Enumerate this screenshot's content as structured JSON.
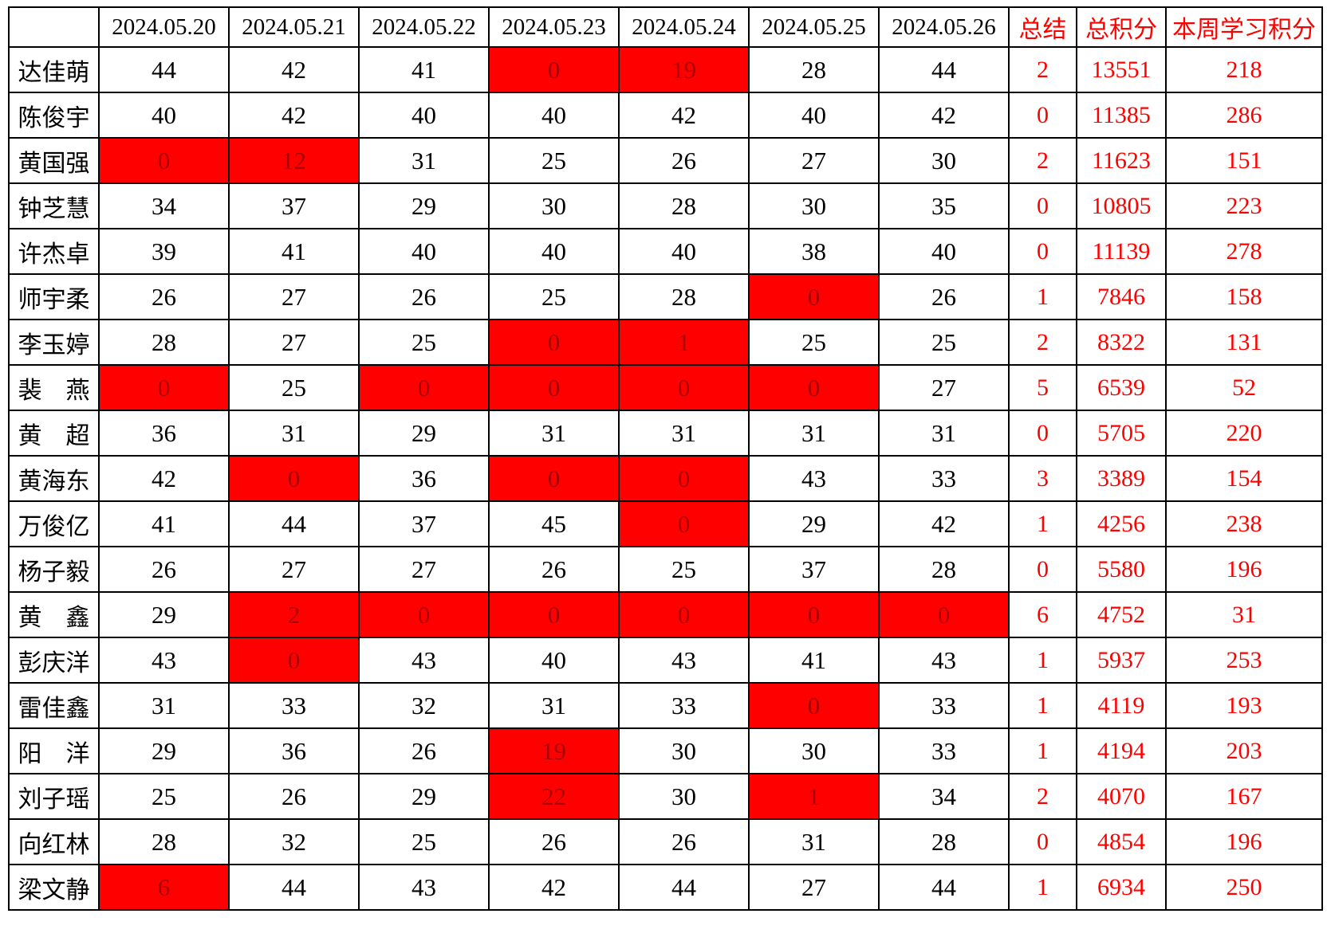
{
  "table": {
    "columns": {
      "corner": "",
      "dates": [
        "2024.05.20",
        "2024.05.21",
        "2024.05.22",
        "2024.05.23",
        "2024.05.24",
        "2024.05.25",
        "2024.05.26"
      ],
      "summary": "总结",
      "total": "总积分",
      "week": "本周学习积分"
    },
    "rows": [
      {
        "name": "达佳萌",
        "daily": [
          44,
          42,
          41,
          0,
          19,
          28,
          44
        ],
        "red": [
          false,
          false,
          false,
          true,
          true,
          false,
          false
        ],
        "summary": 2,
        "total": 13551,
        "week": 218
      },
      {
        "name": "陈俊宇",
        "daily": [
          40,
          42,
          40,
          40,
          42,
          40,
          42
        ],
        "red": [
          false,
          false,
          false,
          false,
          false,
          false,
          false
        ],
        "summary": 0,
        "total": 11385,
        "week": 286
      },
      {
        "name": "黄国强",
        "daily": [
          0,
          12,
          31,
          25,
          26,
          27,
          30
        ],
        "red": [
          true,
          true,
          false,
          false,
          false,
          false,
          false
        ],
        "summary": 2,
        "total": 11623,
        "week": 151
      },
      {
        "name": "钟芝慧",
        "daily": [
          34,
          37,
          29,
          30,
          28,
          30,
          35
        ],
        "red": [
          false,
          false,
          false,
          false,
          false,
          false,
          false
        ],
        "summary": 0,
        "total": 10805,
        "week": 223
      },
      {
        "name": "许杰卓",
        "daily": [
          39,
          41,
          40,
          40,
          40,
          38,
          40
        ],
        "red": [
          false,
          false,
          false,
          false,
          false,
          false,
          false
        ],
        "summary": 0,
        "total": 11139,
        "week": 278
      },
      {
        "name": "师宇柔",
        "daily": [
          26,
          27,
          26,
          25,
          28,
          0,
          26
        ],
        "red": [
          false,
          false,
          false,
          false,
          false,
          true,
          false
        ],
        "summary": 1,
        "total": 7846,
        "week": 158
      },
      {
        "name": "李玉婷",
        "daily": [
          28,
          27,
          25,
          0,
          1,
          25,
          25
        ],
        "red": [
          false,
          false,
          false,
          true,
          true,
          false,
          false
        ],
        "summary": 2,
        "total": 8322,
        "week": 131
      },
      {
        "name": "裴　燕",
        "daily": [
          0,
          25,
          0,
          0,
          0,
          0,
          27
        ],
        "red": [
          true,
          false,
          true,
          true,
          true,
          true,
          false
        ],
        "summary": 5,
        "total": 6539,
        "week": 52
      },
      {
        "name": "黄　超",
        "daily": [
          36,
          31,
          29,
          31,
          31,
          31,
          31
        ],
        "red": [
          false,
          false,
          false,
          false,
          false,
          false,
          false
        ],
        "summary": 0,
        "total": 5705,
        "week": 220
      },
      {
        "name": "黄海东",
        "daily": [
          42,
          0,
          36,
          0,
          0,
          43,
          33
        ],
        "red": [
          false,
          true,
          false,
          true,
          true,
          false,
          false
        ],
        "summary": 3,
        "total": 3389,
        "week": 154
      },
      {
        "name": "万俊亿",
        "daily": [
          41,
          44,
          37,
          45,
          0,
          29,
          42
        ],
        "red": [
          false,
          false,
          false,
          false,
          true,
          false,
          false
        ],
        "summary": 1,
        "total": 4256,
        "week": 238
      },
      {
        "name": "杨子毅",
        "daily": [
          26,
          27,
          27,
          26,
          25,
          37,
          28
        ],
        "red": [
          false,
          false,
          false,
          false,
          false,
          false,
          false
        ],
        "summary": 0,
        "total": 5580,
        "week": 196
      },
      {
        "name": "黄　鑫",
        "daily": [
          29,
          2,
          0,
          0,
          0,
          0,
          0
        ],
        "red": [
          false,
          true,
          true,
          true,
          true,
          true,
          true
        ],
        "summary": 6,
        "total": 4752,
        "week": 31
      },
      {
        "name": "彭庆洋",
        "daily": [
          43,
          0,
          43,
          40,
          43,
          41,
          43
        ],
        "red": [
          false,
          true,
          false,
          false,
          false,
          false,
          false
        ],
        "summary": 1,
        "total": 5937,
        "week": 253
      },
      {
        "name": "雷佳鑫",
        "daily": [
          31,
          33,
          32,
          31,
          33,
          0,
          33
        ],
        "red": [
          false,
          false,
          false,
          false,
          false,
          true,
          false
        ],
        "summary": 1,
        "total": 4119,
        "week": 193
      },
      {
        "name": "阳　洋",
        "daily": [
          29,
          36,
          26,
          19,
          30,
          30,
          33
        ],
        "red": [
          false,
          false,
          false,
          true,
          false,
          false,
          false
        ],
        "summary": 1,
        "total": 4194,
        "week": 203
      },
      {
        "name": "刘子瑶",
        "daily": [
          25,
          26,
          29,
          22,
          30,
          1,
          34
        ],
        "red": [
          false,
          false,
          false,
          true,
          false,
          true,
          false
        ],
        "summary": 2,
        "total": 4070,
        "week": 167
      },
      {
        "name": "向红林",
        "daily": [
          28,
          32,
          25,
          26,
          26,
          31,
          28
        ],
        "red": [
          false,
          false,
          false,
          false,
          false,
          false,
          false
        ],
        "summary": 0,
        "total": 4854,
        "week": 196
      },
      {
        "name": "梁文静",
        "daily": [
          6,
          44,
          43,
          42,
          44,
          27,
          44
        ],
        "red": [
          true,
          false,
          false,
          false,
          false,
          false,
          false
        ],
        "summary": 1,
        "total": 6934,
        "week": 250
      }
    ]
  },
  "colors": {
    "highlight_background": "#ff0000",
    "highlight_digit": "#a80000",
    "red_text": "#ff0000",
    "normal_text": "#000000",
    "border": "#000000"
  }
}
